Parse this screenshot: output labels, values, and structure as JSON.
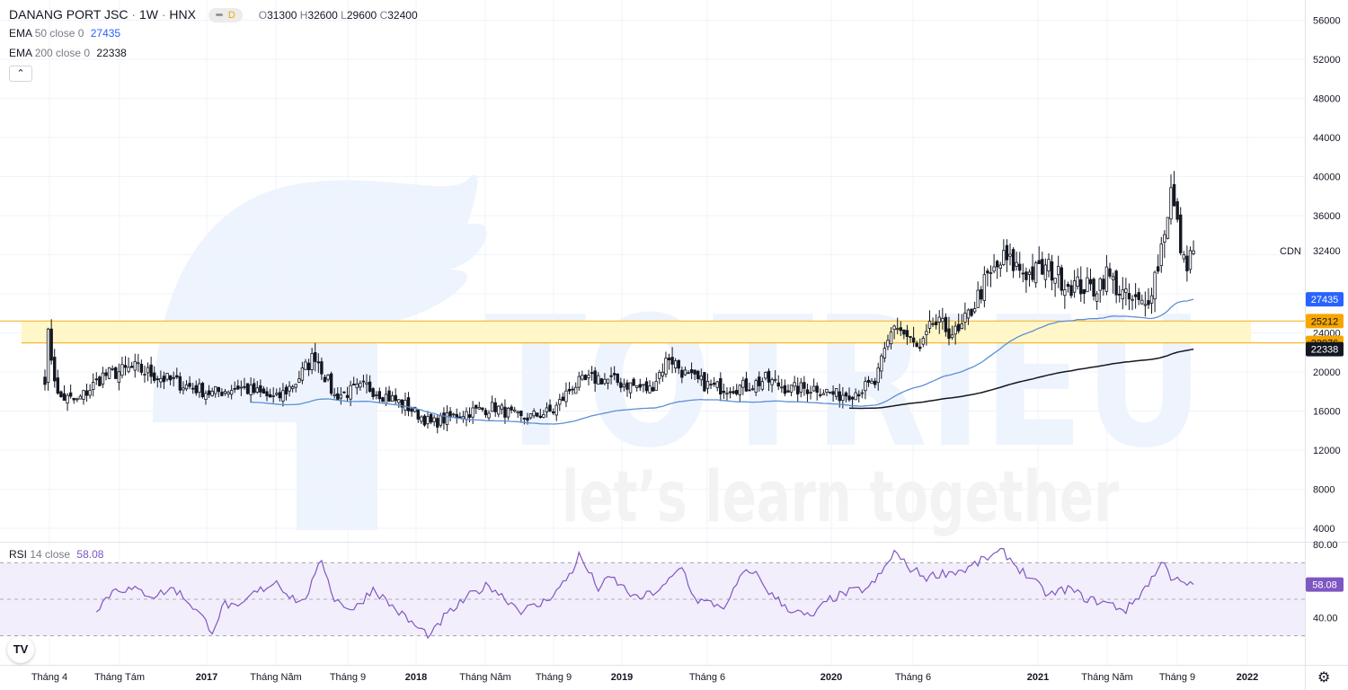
{
  "header": {
    "symbol": "DANANG PORT JSC",
    "interval": "1W",
    "exchange": "HNX",
    "badge": "D",
    "ohlc": {
      "o_label": "O",
      "o": "31300",
      "h_label": "H",
      "h": "32600",
      "l_label": "L",
      "l": "29600",
      "c_label": "C",
      "c": "32400"
    }
  },
  "indicators": {
    "ema50": {
      "name": "EMA",
      "params": "50 close 0",
      "value": "27435"
    },
    "ema200": {
      "name": "EMA",
      "params": "200 close 0",
      "value": "22338"
    },
    "rsi": {
      "name": "RSI",
      "params": "14 close",
      "value": "58.08"
    }
  },
  "collapse_icon": "chevron-up-icon",
  "watermark": {
    "text": "let’s learn together",
    "brand": "TOTRIEU"
  },
  "symbol_label": "CDN",
  "colors": {
    "up_candle": "#ffffff",
    "down_candle": "#131722",
    "ema50": "#5b8fd6",
    "ema200": "#131722",
    "rsi_line": "#7e57c2",
    "rsi_band": "#f3eefb",
    "zone_fill": "#fff7c7",
    "zone_border": "#f7b731",
    "price_badge_blue": "#2962ff",
    "price_badge_orange": "#f7a600"
  },
  "chart_data": [
    {
      "type": "candlestick",
      "ylim": [
        4000,
        56000
      ],
      "y_ticks": [
        4000,
        8000,
        12000,
        16000,
        20000,
        24000,
        28000,
        32000,
        36000,
        40000,
        44000,
        48000,
        52000,
        56000
      ],
      "y_tick_labels": [
        "4000",
        "8000",
        "12000",
        "16000",
        "20000",
        "24000",
        "",
        "",
        "36000",
        "40000",
        "44000",
        "48000",
        "52000",
        "56000"
      ],
      "x_labels": [
        "Tháng 4",
        "Tháng Tám",
        "2017",
        "Tháng Năm",
        "Tháng 9",
        "2018",
        "Tháng Năm",
        "Tháng 9",
        "2019",
        "Tháng 6",
        "2020",
        "Tháng 6",
        "2021",
        "Tháng Năm",
        "Tháng 9",
        "2022"
      ],
      "x_label_bold": [
        false,
        false,
        true,
        false,
        false,
        true,
        false,
        false,
        true,
        false,
        true,
        false,
        true,
        false,
        false,
        true
      ],
      "zone": [
        22976,
        25212
      ],
      "close_anchors": [
        [
          0,
          19500
        ],
        [
          1,
          23600
        ],
        [
          4,
          17500
        ],
        [
          10,
          17000
        ],
        [
          18,
          19600
        ],
        [
          28,
          20400
        ],
        [
          38,
          19200
        ],
        [
          52,
          17800
        ],
        [
          60,
          18500
        ],
        [
          72,
          17200
        ],
        [
          78,
          19000
        ],
        [
          84,
          21800
        ],
        [
          90,
          17500
        ],
        [
          100,
          18500
        ],
        [
          112,
          16600
        ],
        [
          120,
          14700
        ],
        [
          130,
          15800
        ],
        [
          140,
          16400
        ],
        [
          148,
          15200
        ],
        [
          158,
          16000
        ],
        [
          164,
          18600
        ],
        [
          172,
          19400
        ],
        [
          180,
          18800
        ],
        [
          188,
          18200
        ],
        [
          194,
          21600
        ],
        [
          200,
          19400
        ],
        [
          208,
          18400
        ],
        [
          218,
          18500
        ],
        [
          224,
          19200
        ],
        [
          232,
          18200
        ],
        [
          240,
          18400
        ],
        [
          246,
          17600
        ],
        [
          252,
          18000
        ],
        [
          258,
          18800
        ],
        [
          264,
          25000
        ],
        [
          272,
          22000
        ],
        [
          276,
          25000
        ],
        [
          284,
          23800
        ],
        [
          292,
          29000
        ],
        [
          298,
          31500
        ],
        [
          306,
          30000
        ],
        [
          312,
          30600
        ],
        [
          318,
          29000
        ],
        [
          326,
          28500
        ],
        [
          330,
          30000
        ],
        [
          336,
          27500
        ],
        [
          342,
          26700
        ],
        [
          346,
          31000
        ],
        [
          350,
          38500
        ],
        [
          354,
          31000
        ],
        [
          357,
          32400
        ]
      ],
      "ema50": {
        "name": "EMA 50",
        "last": 27435
      },
      "ema200": {
        "name": "EMA 200",
        "last": 22338
      },
      "price_badges": [
        {
          "value": "27435",
          "color": "blue",
          "level": 27435
        },
        {
          "value": "25212",
          "color": "orange",
          "level": 25212
        },
        {
          "value": "22976",
          "color": "orange",
          "level": 22976
        },
        {
          "value": "22338",
          "color": "dark",
          "level": 22338
        }
      ],
      "last_price": {
        "label": "32400",
        "level": 32400
      }
    },
    {
      "type": "line",
      "title": "RSI 14 close",
      "ylim": [
        20,
        80
      ],
      "y_ticks": [
        40,
        80
      ],
      "y_tick_labels": [
        "40.00",
        "80.00"
      ],
      "band": [
        30,
        70
      ],
      "midline": 50,
      "last": {
        "label": "58.08",
        "level": 58.08
      },
      "rsi_anchors": [
        [
          16,
          45
        ],
        [
          22,
          56
        ],
        [
          28,
          55
        ],
        [
          34,
          52
        ],
        [
          40,
          56
        ],
        [
          44,
          50
        ],
        [
          48,
          42
        ],
        [
          52,
          33
        ],
        [
          56,
          48
        ],
        [
          60,
          44
        ],
        [
          64,
          52
        ],
        [
          68,
          56
        ],
        [
          72,
          60
        ],
        [
          76,
          52
        ],
        [
          80,
          48
        ],
        [
          84,
          62
        ],
        [
          86,
          72
        ],
        [
          90,
          50
        ],
        [
          96,
          44
        ],
        [
          102,
          56
        ],
        [
          108,
          46
        ],
        [
          112,
          40
        ],
        [
          116,
          34
        ],
        [
          120,
          30
        ],
        [
          124,
          40
        ],
        [
          128,
          46
        ],
        [
          132,
          52
        ],
        [
          138,
          58
        ],
        [
          142,
          52
        ],
        [
          148,
          44
        ],
        [
          154,
          47
        ],
        [
          160,
          56
        ],
        [
          164,
          66
        ],
        [
          166,
          74
        ],
        [
          172,
          56
        ],
        [
          176,
          62
        ],
        [
          184,
          50
        ],
        [
          192,
          56
        ],
        [
          198,
          68
        ],
        [
          202,
          50
        ],
        [
          206,
          48
        ],
        [
          212,
          46
        ],
        [
          216,
          62
        ],
        [
          220,
          66
        ],
        [
          226,
          52
        ],
        [
          232,
          44
        ],
        [
          238,
          40
        ],
        [
          244,
          50
        ],
        [
          250,
          54
        ],
        [
          256,
          56
        ],
        [
          260,
          64
        ],
        [
          264,
          76
        ],
        [
          268,
          68
        ],
        [
          274,
          62
        ],
        [
          278,
          64
        ],
        [
          286,
          66
        ],
        [
          292,
          72
        ],
        [
          298,
          76
        ],
        [
          302,
          68
        ],
        [
          306,
          62
        ],
        [
          312,
          52
        ],
        [
          318,
          56
        ],
        [
          324,
          50
        ],
        [
          330,
          48
        ],
        [
          336,
          44
        ],
        [
          340,
          52
        ],
        [
          346,
          66
        ],
        [
          348,
          72
        ],
        [
          350,
          62
        ],
        [
          354,
          58
        ],
        [
          357,
          58.08
        ]
      ]
    }
  ]
}
